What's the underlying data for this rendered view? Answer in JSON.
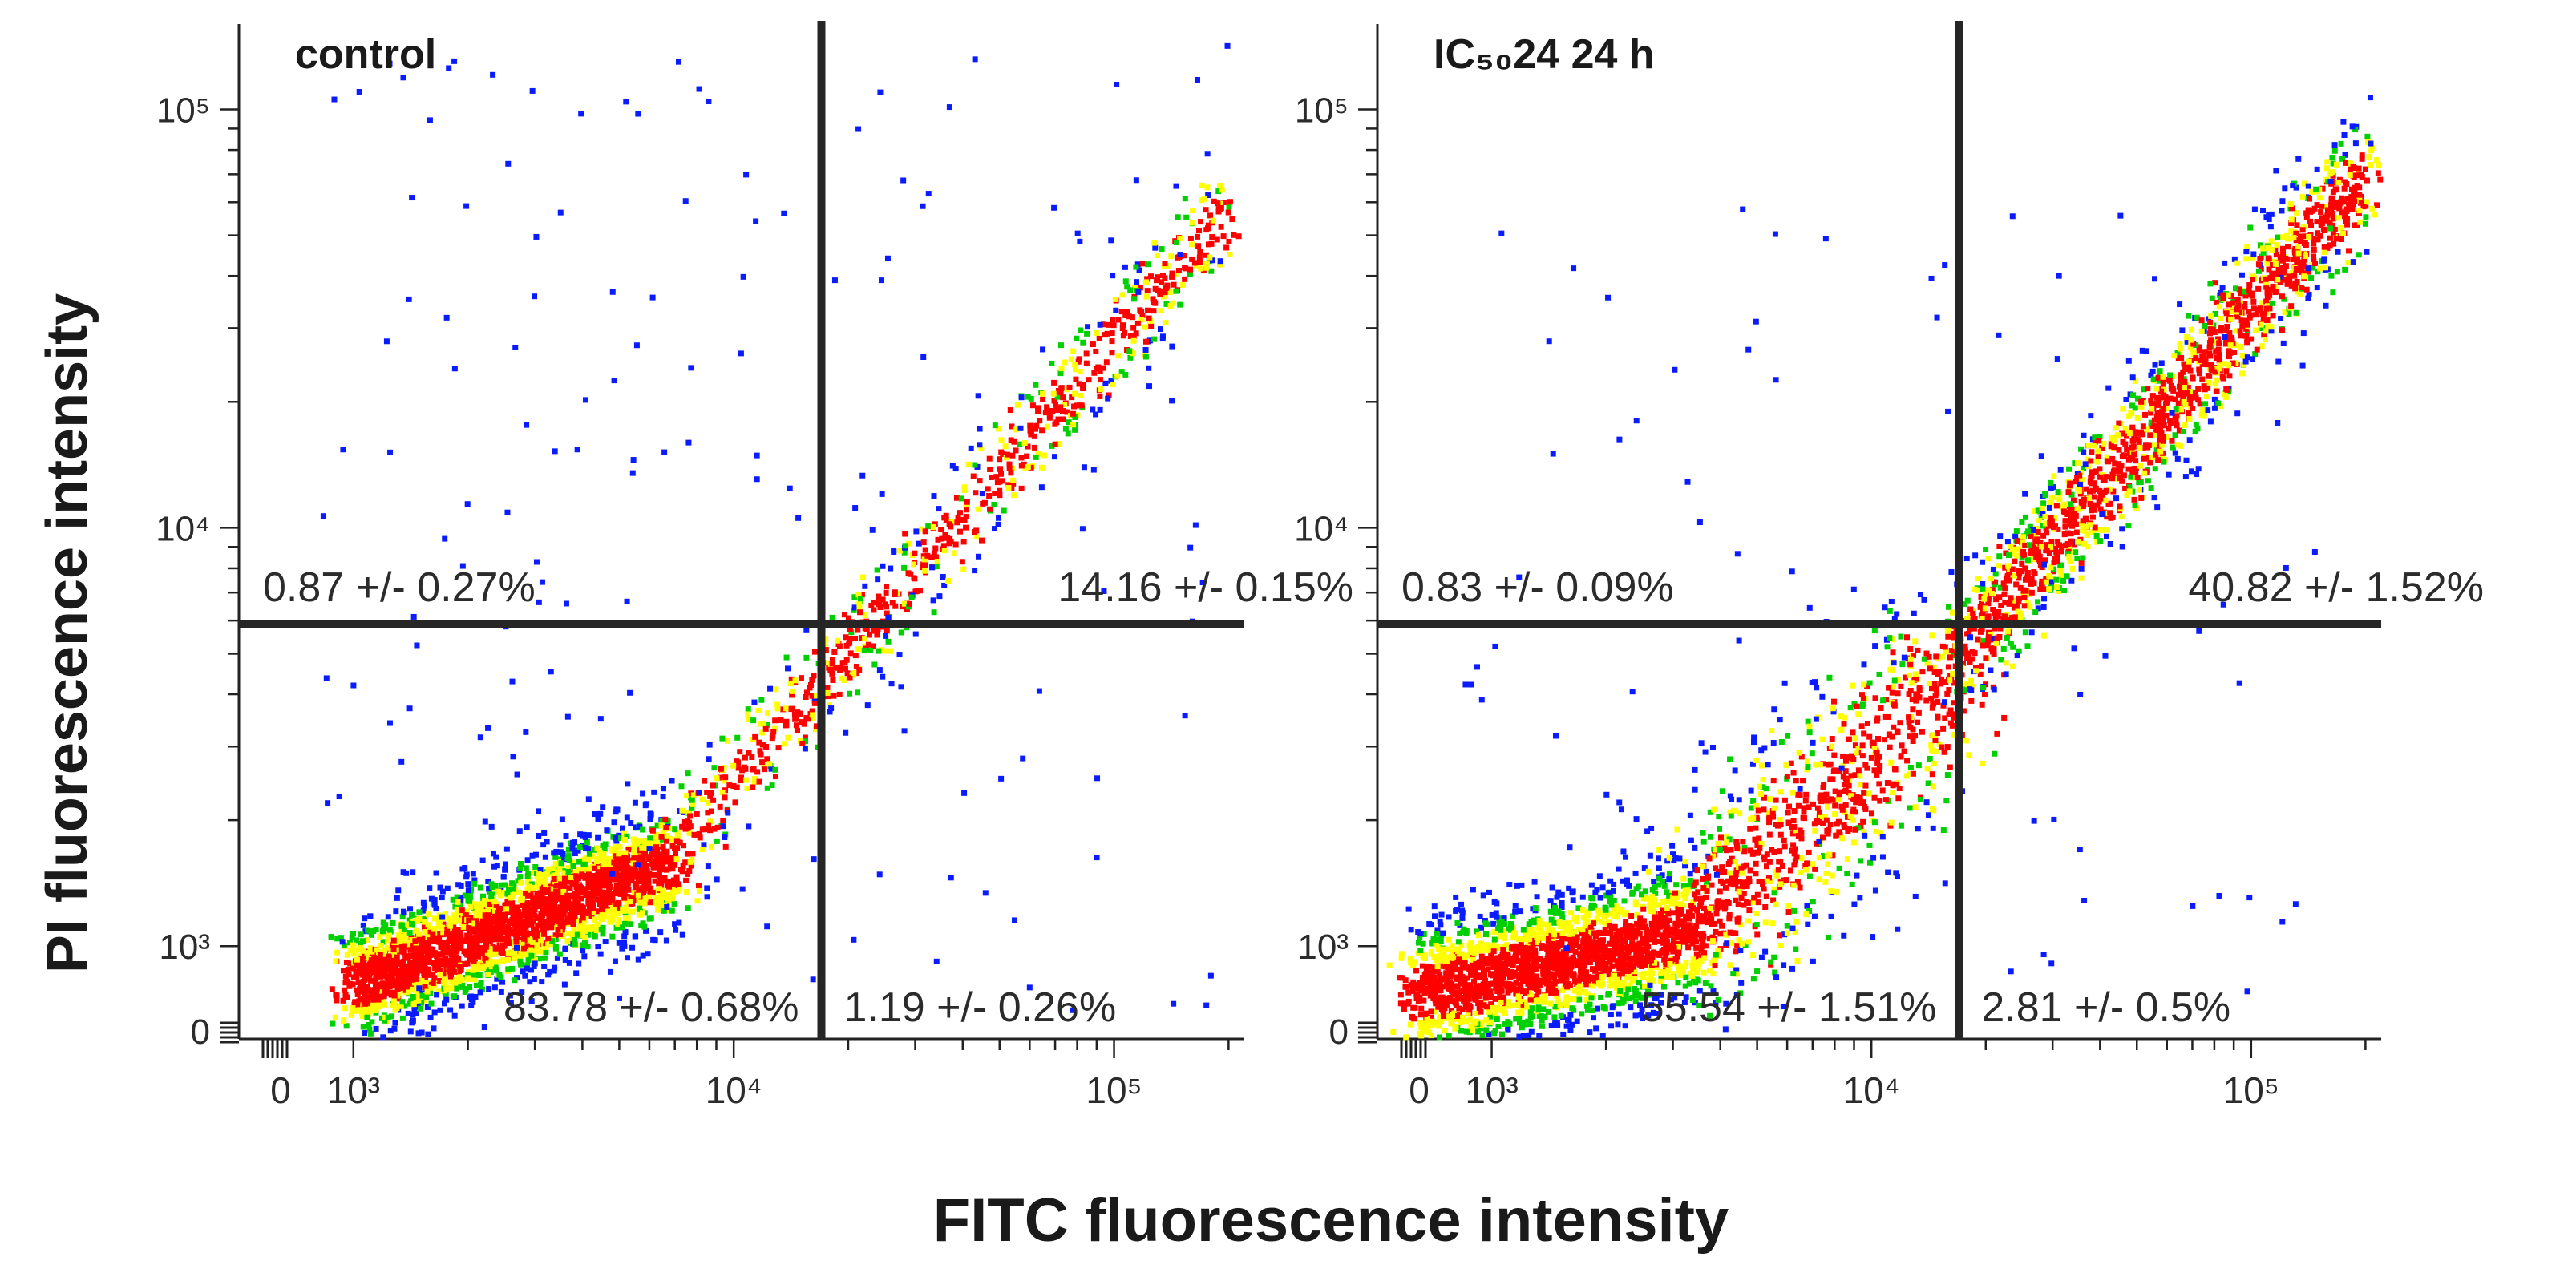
{
  "figure": {
    "ylabel": "PI fluorescence intensity",
    "xlabel": "FITC fluorescence intensity"
  },
  "colors": {
    "axis": "#222222",
    "gate": "#262626",
    "density_low": "#0a1cff",
    "density_midlow": "#00d000",
    "density_mid": "#ffff00",
    "density_high": "#ff0000"
  },
  "chart_data": [
    {
      "type": "scatter",
      "subtype": "flow-cytometry-density-dot-plot",
      "title": "control",
      "xlabel": "FITC fluorescence intensity",
      "ylabel": "PI fluorescence intensity",
      "x_scale": "log",
      "y_scale": "log",
      "xlim": [
        500,
        220000
      ],
      "ylim": [
        600,
        160000
      ],
      "x_tick_labels": [
        "0",
        "10³",
        "10⁴",
        "10⁵"
      ],
      "y_tick_labels": [
        "0",
        "10³",
        "10⁴",
        "10⁵"
      ],
      "gate": {
        "x": 17000,
        "y": 5900
      },
      "quadrants": {
        "upper_left": "0.87 +/- 0.27%",
        "upper_right": "14.16 +/- 0.15%",
        "lower_left": "83.78 +/- 0.68%",
        "lower_right": "1.19 +/- 0.26%"
      },
      "populations": [
        {
          "name": "live",
          "x_range": [
            1000,
            7000
          ],
          "y_at_xmin": 800,
          "y_at_xmax": 1600,
          "spread": 0.07,
          "n": 2600
        },
        {
          "name": "late",
          "x_range": [
            7000,
            200000
          ],
          "y_at_xmin": 1700,
          "y_at_xmax": 58000,
          "spread": 0.06,
          "n": 900
        },
        {
          "name": "scatter",
          "x_range": [
            800,
            200000
          ],
          "y_range": [
            700,
            150000
          ],
          "n": 160
        }
      ]
    },
    {
      "type": "scatter",
      "subtype": "flow-cytometry-density-dot-plot",
      "title": "IC₅₀24 24 h",
      "xlabel": "FITC fluorescence intensity",
      "ylabel": "PI fluorescence intensity",
      "x_scale": "log",
      "y_scale": "log",
      "xlim": [
        500,
        220000
      ],
      "ylim": [
        600,
        160000
      ],
      "x_tick_labels": [
        "0",
        "10³",
        "10⁴",
        "10⁵"
      ],
      "y_tick_labels": [
        "0",
        "10³",
        "10⁴",
        "10⁵"
      ],
      "gate": {
        "x": 17000,
        "y": 5900
      },
      "quadrants": {
        "upper_left": "0.83 +/- 0.09%",
        "upper_right": "40.82 +/- 1.52%",
        "lower_left": "55.54 +/- 1.51%",
        "lower_right": "2.81 +/- 0.5%"
      },
      "populations": [
        {
          "name": "live",
          "x_range": [
            650,
            3500
          ],
          "y_at_xmin": 760,
          "y_at_xmax": 1100,
          "spread": 0.08,
          "n": 2000
        },
        {
          "name": "early",
          "x_range": [
            3500,
            17000
          ],
          "y_at_xmin": 1100,
          "y_at_xmax": 4500,
          "spread": 0.13,
          "n": 900
        },
        {
          "name": "late",
          "x_range": [
            17000,
            200000
          ],
          "y_at_xmin": 5000,
          "y_at_xmax": 70000,
          "spread": 0.07,
          "n": 1600
        },
        {
          "name": "scatter",
          "x_range": [
            800,
            150000
          ],
          "y_range": [
            700,
            60000
          ],
          "n": 90
        }
      ]
    }
  ]
}
